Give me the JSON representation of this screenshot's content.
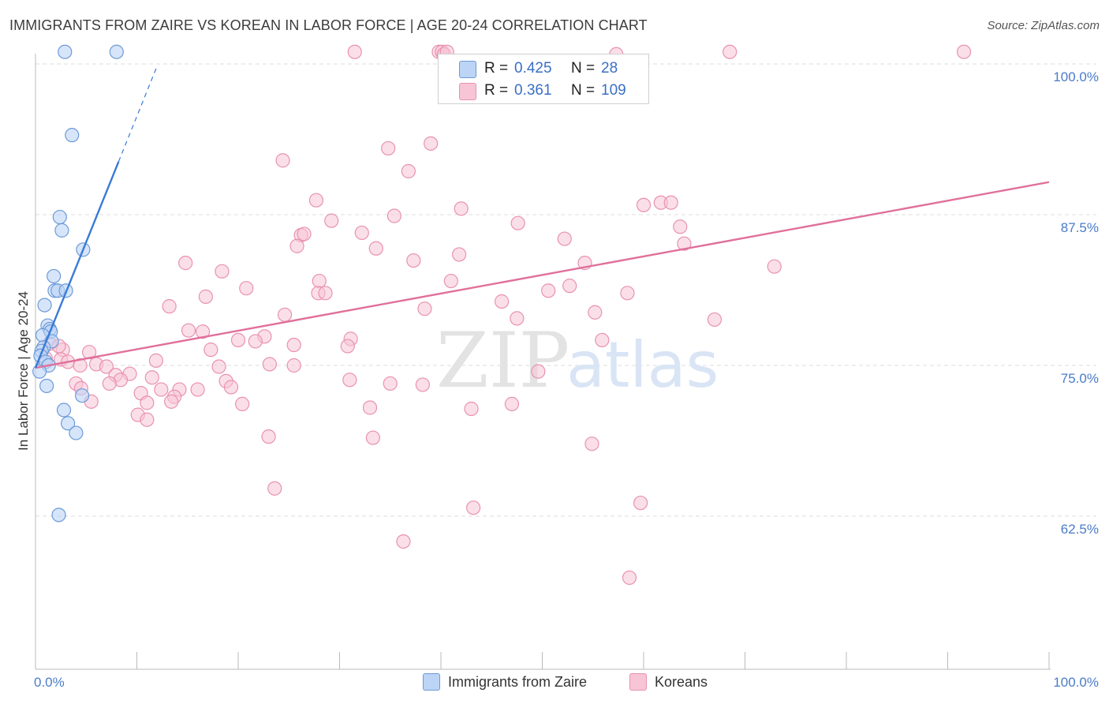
{
  "title": "IMMIGRANTS FROM ZAIRE VS KOREAN IN LABOR FORCE | AGE 20-24 CORRELATION CHART",
  "source": "Source: ZipAtlas.com",
  "colors": {
    "blue_fill": "#bcd4f6",
    "blue_stroke": "#6c9bd8",
    "blue_line": "#3a7bd5",
    "pink_fill": "#f7c5d5",
    "pink_stroke": "#e892af",
    "pink_line": "#e0709a",
    "tick_label": "#4a7cc9",
    "grid": "#dddddd"
  },
  "legend": {
    "rows": [
      {
        "r_label": "R =",
        "r_value": "0.425",
        "n_label": "N =",
        "n_value": "28"
      },
      {
        "r_label": "R =",
        "r_value": "0.361",
        "n_label": "N =",
        "n_value": "109"
      }
    ]
  },
  "bottom_legend": [
    "Immigrants from Zaire",
    "Koreans"
  ],
  "watermark": {
    "zip": "ZIP",
    "atlas": "atlas"
  },
  "chart_data": {
    "type": "scatter",
    "title": "IMMIGRANTS FROM ZAIRE VS KOREAN IN LABOR FORCE | AGE 20-24 CORRELATION CHART",
    "xlabel": "",
    "ylabel": "In Labor Force | Age 20-24",
    "xlim": [
      0,
      100
    ],
    "ylim": [
      52.5,
      102
    ],
    "x_tick_labels": [
      "0.0%",
      "100.0%"
    ],
    "y_ticks": [
      62.5,
      75.0,
      87.5,
      100.0
    ],
    "y_tick_labels": [
      "62.5%",
      "75.0%",
      "87.5%",
      "100.0%"
    ],
    "grid": "horizontal dashed",
    "legend_position": "top-center",
    "series": [
      {
        "name": "Immigrants from Zaire",
        "R": 0.425,
        "N": 28,
        "trend": {
          "x0": 0.0,
          "y0": 74.8,
          "x1": 8.2,
          "y1": 91.9,
          "dashed_to_x": 12.0
        },
        "points": [
          [
            2.9,
            101.0
          ],
          [
            8.0,
            101.0
          ],
          [
            3.6,
            94.1
          ],
          [
            2.4,
            87.3
          ],
          [
            2.6,
            86.2
          ],
          [
            4.7,
            84.6
          ],
          [
            1.8,
            82.4
          ],
          [
            1.9,
            81.2
          ],
          [
            2.2,
            81.2
          ],
          [
            3.0,
            81.2
          ],
          [
            0.9,
            80.0
          ],
          [
            1.2,
            78.3
          ],
          [
            1.4,
            78.0
          ],
          [
            1.5,
            77.8
          ],
          [
            0.7,
            77.5
          ],
          [
            1.6,
            77.0
          ],
          [
            0.8,
            76.5
          ],
          [
            0.6,
            76.2
          ],
          [
            0.5,
            75.8
          ],
          [
            1.0,
            75.3
          ],
          [
            1.3,
            75.0
          ],
          [
            0.4,
            74.5
          ],
          [
            1.1,
            73.3
          ],
          [
            4.6,
            72.5
          ],
          [
            2.8,
            71.3
          ],
          [
            3.2,
            70.2
          ],
          [
            4.0,
            69.4
          ],
          [
            2.3,
            62.6
          ]
        ]
      },
      {
        "name": "Koreans",
        "R": 0.361,
        "N": 109,
        "trend": {
          "x0": 0.0,
          "y0": 74.8,
          "x1": 100.0,
          "y1": 90.2
        },
        "points": [
          [
            31.5,
            101.0
          ],
          [
            39.8,
            101.0
          ],
          [
            68.5,
            101.0
          ],
          [
            91.6,
            101.0
          ],
          [
            40.1,
            101.0
          ],
          [
            40.3,
            100.8
          ],
          [
            57.3,
            100.8
          ],
          [
            40.6,
            101.0
          ],
          [
            39.0,
            93.4
          ],
          [
            34.8,
            93.0
          ],
          [
            24.4,
            92.0
          ],
          [
            36.8,
            91.1
          ],
          [
            27.7,
            88.7
          ],
          [
            42.0,
            88.0
          ],
          [
            60.0,
            88.3
          ],
          [
            61.7,
            88.5
          ],
          [
            62.7,
            88.5
          ],
          [
            35.4,
            87.4
          ],
          [
            29.2,
            87.0
          ],
          [
            47.6,
            86.8
          ],
          [
            63.6,
            86.5
          ],
          [
            32.2,
            86.0
          ],
          [
            26.2,
            85.8
          ],
          [
            26.5,
            85.9
          ],
          [
            52.2,
            85.5
          ],
          [
            25.8,
            84.9
          ],
          [
            33.6,
            84.7
          ],
          [
            41.8,
            84.2
          ],
          [
            64.0,
            85.1
          ],
          [
            37.3,
            83.7
          ],
          [
            14.8,
            83.5
          ],
          [
            54.2,
            83.5
          ],
          [
            18.4,
            82.8
          ],
          [
            72.9,
            83.2
          ],
          [
            28.0,
            82.0
          ],
          [
            41.0,
            82.0
          ],
          [
            52.7,
            81.6
          ],
          [
            20.8,
            81.4
          ],
          [
            27.9,
            81.0
          ],
          [
            28.6,
            81.0
          ],
          [
            50.6,
            81.2
          ],
          [
            58.4,
            81.0
          ],
          [
            16.8,
            80.7
          ],
          [
            46.0,
            80.3
          ],
          [
            13.2,
            79.9
          ],
          [
            38.4,
            79.7
          ],
          [
            24.6,
            79.2
          ],
          [
            55.2,
            79.4
          ],
          [
            47.5,
            78.9
          ],
          [
            67.0,
            78.8
          ],
          [
            15.1,
            77.9
          ],
          [
            16.5,
            77.8
          ],
          [
            22.6,
            77.4
          ],
          [
            20.0,
            77.1
          ],
          [
            21.7,
            77.0
          ],
          [
            31.1,
            77.2
          ],
          [
            55.9,
            77.1
          ],
          [
            25.5,
            76.7
          ],
          [
            30.8,
            76.6
          ],
          [
            17.3,
            76.3
          ],
          [
            2.7,
            76.3
          ],
          [
            5.3,
            76.1
          ],
          [
            1.4,
            76.8
          ],
          [
            2.5,
            75.5
          ],
          [
            3.2,
            75.3
          ],
          [
            11.9,
            75.4
          ],
          [
            6.0,
            75.1
          ],
          [
            23.1,
            75.1
          ],
          [
            25.5,
            75.0
          ],
          [
            4.4,
            75.0
          ],
          [
            18.1,
            74.9
          ],
          [
            7.0,
            74.9
          ],
          [
            1.0,
            75.6
          ],
          [
            7.9,
            74.2
          ],
          [
            9.3,
            74.3
          ],
          [
            49.6,
            74.5
          ],
          [
            8.4,
            73.8
          ],
          [
            11.5,
            74.0
          ],
          [
            18.8,
            73.7
          ],
          [
            31.0,
            73.8
          ],
          [
            4.0,
            73.5
          ],
          [
            7.3,
            73.5
          ],
          [
            10.4,
            72.7
          ],
          [
            4.5,
            73.1
          ],
          [
            12.4,
            73.0
          ],
          [
            14.2,
            73.0
          ],
          [
            16.0,
            73.0
          ],
          [
            19.3,
            73.2
          ],
          [
            13.7,
            72.4
          ],
          [
            35.0,
            73.5
          ],
          [
            38.2,
            73.4
          ],
          [
            5.5,
            72.0
          ],
          [
            11.0,
            71.9
          ],
          [
            13.4,
            72.0
          ],
          [
            20.4,
            71.8
          ],
          [
            33.0,
            71.5
          ],
          [
            47.0,
            71.8
          ],
          [
            10.1,
            70.9
          ],
          [
            11.0,
            70.5
          ],
          [
            43.0,
            71.4
          ],
          [
            23.0,
            69.1
          ],
          [
            33.3,
            69.0
          ],
          [
            54.9,
            68.5
          ],
          [
            23.6,
            64.8
          ],
          [
            43.2,
            63.2
          ],
          [
            59.7,
            63.6
          ],
          [
            36.3,
            60.4
          ],
          [
            58.6,
            57.4
          ],
          [
            2.3,
            76.6
          ]
        ]
      }
    ]
  }
}
